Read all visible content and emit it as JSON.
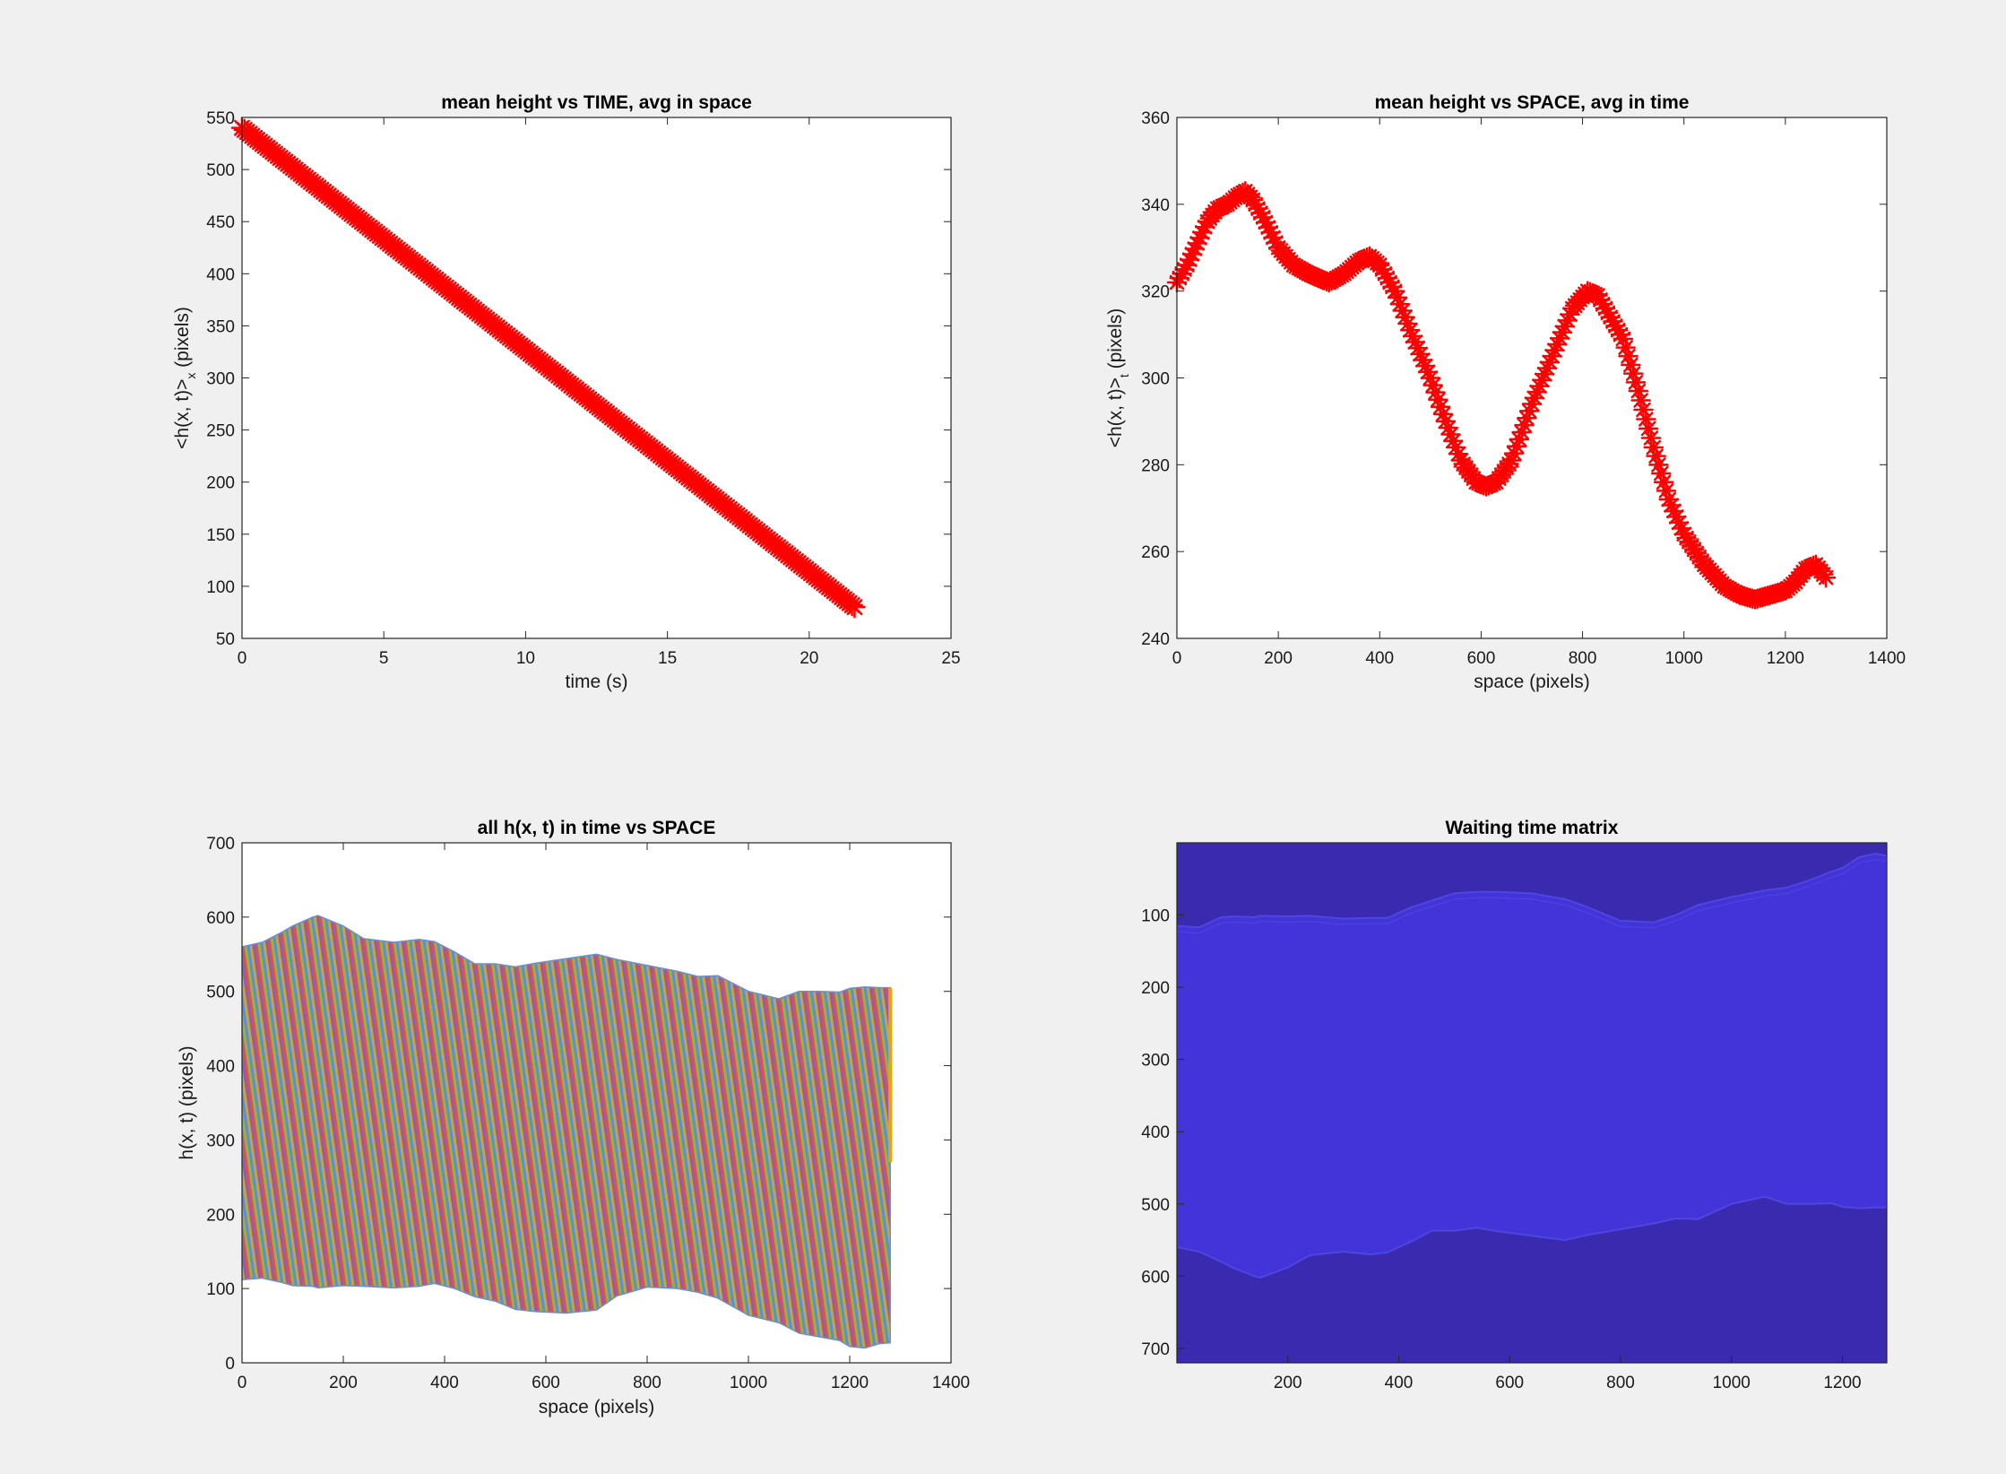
{
  "chart_data": [
    {
      "type": "scatter",
      "title": "mean height vs TIME, avg in space",
      "xlabel": "time (s)",
      "ylabel_main": "<h(x, t)>",
      "ylabel_sub": "x",
      "ylabel_tail": " (pixels)",
      "xlim": [
        0,
        25
      ],
      "ylim": [
        50,
        550
      ],
      "xticks": [
        0,
        5,
        10,
        15,
        20,
        25
      ],
      "yticks": [
        50,
        100,
        150,
        200,
        250,
        300,
        350,
        400,
        450,
        500,
        550
      ],
      "marker": "*",
      "color": "#ff0000",
      "x": [
        0,
        21.6
      ],
      "y": [
        540,
        80
      ],
      "grid": false
    },
    {
      "type": "scatter",
      "title": "mean height vs SPACE, avg in time",
      "xlabel": "space (pixels)",
      "ylabel_main": "<h(x, t)>",
      "ylabel_sub": "t",
      "ylabel_tail": " (pixels)",
      "xlim": [
        0,
        1400
      ],
      "ylim": [
        240,
        360
      ],
      "xticks": [
        0,
        200,
        400,
        600,
        800,
        1000,
        1200,
        1400
      ],
      "yticks": [
        240,
        260,
        280,
        300,
        320,
        340,
        360
      ],
      "marker": "*",
      "color": "#ff0000",
      "x": [
        0,
        20,
        40,
        60,
        80,
        100,
        120,
        135,
        150,
        170,
        200,
        230,
        260,
        300,
        330,
        360,
        380,
        400,
        430,
        460,
        500,
        530,
        560,
        590,
        610,
        630,
        660,
        700,
        740,
        780,
        810,
        830,
        850,
        880,
        910,
        940,
        970,
        1000,
        1040,
        1080,
        1110,
        1140,
        1170,
        1200,
        1220,
        1240,
        1260,
        1280
      ],
      "y": [
        322,
        326,
        331,
        336,
        339,
        340,
        342,
        343,
        341,
        337,
        330,
        326,
        324,
        322,
        324,
        327,
        328,
        326,
        320,
        311,
        300,
        290,
        281,
        276,
        275,
        276,
        281,
        294,
        305,
        316,
        320,
        319,
        315,
        309,
        297,
        284,
        272,
        264,
        257,
        252,
        250,
        249,
        250,
        251,
        253,
        256,
        257,
        254
      ],
      "grid": false
    },
    {
      "type": "line",
      "title": "all h(x, t) in time vs SPACE",
      "xlabel": "space (pixels)",
      "ylabel": "h(x, t) (pixels)",
      "xlim": [
        0,
        1400
      ],
      "ylim": [
        0,
        700
      ],
      "xticks": [
        0,
        200,
        400,
        600,
        800,
        1000,
        1200,
        1400
      ],
      "yticks": [
        0,
        100,
        200,
        300,
        400,
        500,
        600,
        700
      ],
      "envelope_x": [
        0,
        40,
        80,
        100,
        140,
        150,
        200,
        240,
        300,
        350,
        380,
        420,
        460,
        500,
        540,
        580,
        640,
        700,
        740,
        800,
        860,
        900,
        940,
        1000,
        1060,
        1100,
        1140,
        1180,
        1200,
        1230,
        1260,
        1280
      ],
      "upper": [
        560,
        566,
        580,
        588,
        600,
        602,
        588,
        571,
        566,
        570,
        567,
        553,
        537,
        537,
        533,
        538,
        544,
        550,
        543,
        535,
        527,
        520,
        521,
        500,
        490,
        500,
        500,
        499,
        504,
        506,
        505,
        505
      ],
      "lower": [
        112,
        114,
        108,
        104,
        103,
        101,
        104,
        103,
        101,
        103,
        107,
        100,
        89,
        83,
        72,
        69,
        67,
        71,
        90,
        102,
        100,
        95,
        87,
        64,
        54,
        40,
        35,
        30,
        22,
        20,
        26,
        27
      ],
      "grid": false
    },
    {
      "type": "heatmap",
      "title": "Waiting time matrix",
      "xlim": [
        0,
        1280
      ],
      "ylim": [
        0,
        720
      ],
      "xticks": [
        200,
        400,
        600,
        800,
        1000,
        1200
      ],
      "yticks": [
        100,
        200,
        300,
        400,
        500,
        600,
        700
      ],
      "y_reversed": true,
      "background_color": "#3a2ab0",
      "region_color": "#4234d8",
      "envelope_x": [
        0,
        40,
        80,
        100,
        140,
        150,
        200,
        240,
        300,
        350,
        380,
        420,
        460,
        500,
        540,
        580,
        640,
        700,
        740,
        800,
        860,
        900,
        940,
        1000,
        1060,
        1100,
        1140,
        1180,
        1200,
        1230,
        1260,
        1280
      ],
      "top_boundary": [
        115,
        117,
        103,
        102,
        103,
        101,
        102,
        101,
        105,
        104,
        104,
        90,
        80,
        70,
        68,
        68,
        70,
        78,
        89,
        108,
        110,
        100,
        86,
        75,
        66,
        62,
        52,
        40,
        35,
        20,
        15,
        18
      ],
      "bottom_boundary": [
        560,
        566,
        580,
        588,
        600,
        602,
        588,
        571,
        566,
        570,
        567,
        553,
        537,
        537,
        533,
        538,
        544,
        550,
        543,
        535,
        527,
        520,
        521,
        500,
        490,
        500,
        500,
        499,
        504,
        506,
        505,
        505
      ],
      "grid": false
    }
  ]
}
